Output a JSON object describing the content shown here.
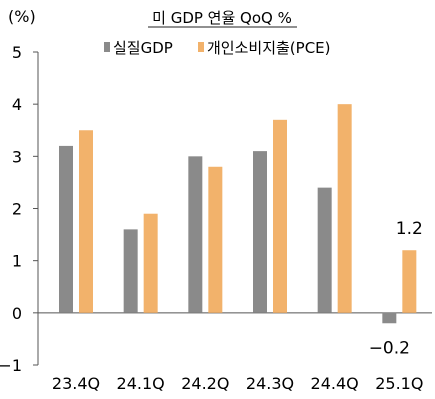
{
  "chart_data": {
    "type": "bar",
    "title": "미 GDP 연율 QoQ %",
    "ylabel": "(%)",
    "xlabel": "",
    "categories": [
      "23.4Q",
      "24.1Q",
      "24.2Q",
      "24.3Q",
      "24.4Q",
      "25.1Q"
    ],
    "series": [
      {
        "name": "실질GDP",
        "values": [
          3.2,
          1.6,
          3.0,
          3.1,
          2.4,
          -0.2
        ]
      },
      {
        "name": "개인소비지출(PCE)",
        "values": [
          3.5,
          1.9,
          2.8,
          3.7,
          4.0,
          1.2
        ]
      }
    ],
    "ylim": [
      -1,
      5
    ],
    "yticks": [
      "5",
      "4",
      "3",
      "2",
      "1",
      "0",
      "−1"
    ],
    "data_labels": [
      {
        "text": "1.2",
        "category": "25.1Q",
        "series": "개인소비지출(PCE)"
      },
      {
        "text": "−0.2",
        "category": "25.1Q",
        "series": "실질GDP"
      }
    ],
    "grid": false,
    "legend": "top-center",
    "colors": {
      "gdp": "#8a8a8a",
      "pce": "#f2b26b",
      "axis": "#555555"
    }
  }
}
